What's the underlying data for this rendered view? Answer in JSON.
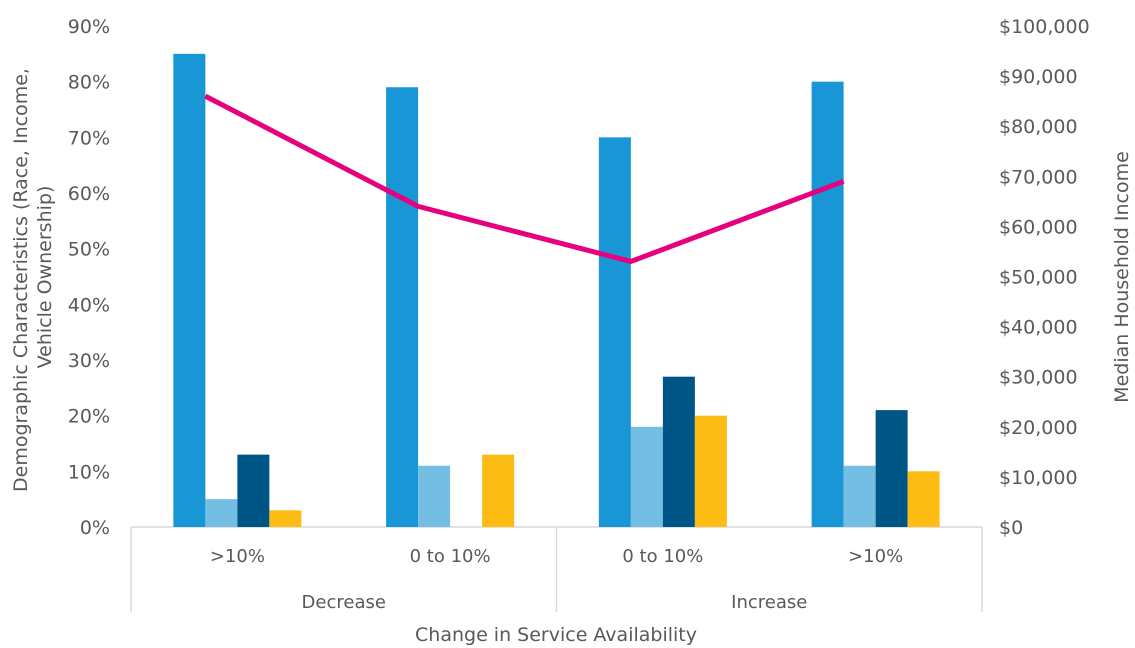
{
  "chart_data": {
    "type": "bar",
    "xlabel": "Change in Service Availability",
    "ylabel_lines": [
      "Demographic Characteristics (Race, Income,",
      "Vehicle Ownership)"
    ],
    "y2label": "Median Household Income",
    "ylim": [
      0,
      90
    ],
    "y2lim": [
      0,
      100000
    ],
    "y_ticks": [
      "0%",
      "10%",
      "20%",
      "30%",
      "40%",
      "50%",
      "60%",
      "70%",
      "80%",
      "90%"
    ],
    "y2_ticks": [
      "$0",
      "$10,000",
      "$20,000",
      "$30,000",
      "$40,000",
      "$50,000",
      "$60,000",
      "$70,000",
      "$80,000",
      "$90,000",
      "$100,000"
    ],
    "groups": [
      "Decrease",
      "Increase"
    ],
    "categories": [
      ">10%",
      "0 to 10%",
      "0 to 10%",
      ">10%"
    ],
    "legend": "none",
    "grid": false,
    "series": [
      {
        "type": "bar",
        "axis": "left",
        "color": "#1896d6",
        "values": [
          85,
          79,
          70,
          80
        ]
      },
      {
        "type": "bar",
        "axis": "left",
        "color": "#74bde3",
        "values": [
          5,
          11,
          18,
          11
        ]
      },
      {
        "type": "bar",
        "axis": "left",
        "color": "#005587",
        "values": [
          13,
          0,
          27,
          21
        ]
      },
      {
        "type": "bar",
        "axis": "left",
        "color": "#fcbc14",
        "values": [
          3,
          13,
          20,
          10
        ]
      },
      {
        "type": "line",
        "axis": "right",
        "color": "#e6007e",
        "values": [
          86000,
          64000,
          53000,
          69000
        ]
      }
    ]
  }
}
